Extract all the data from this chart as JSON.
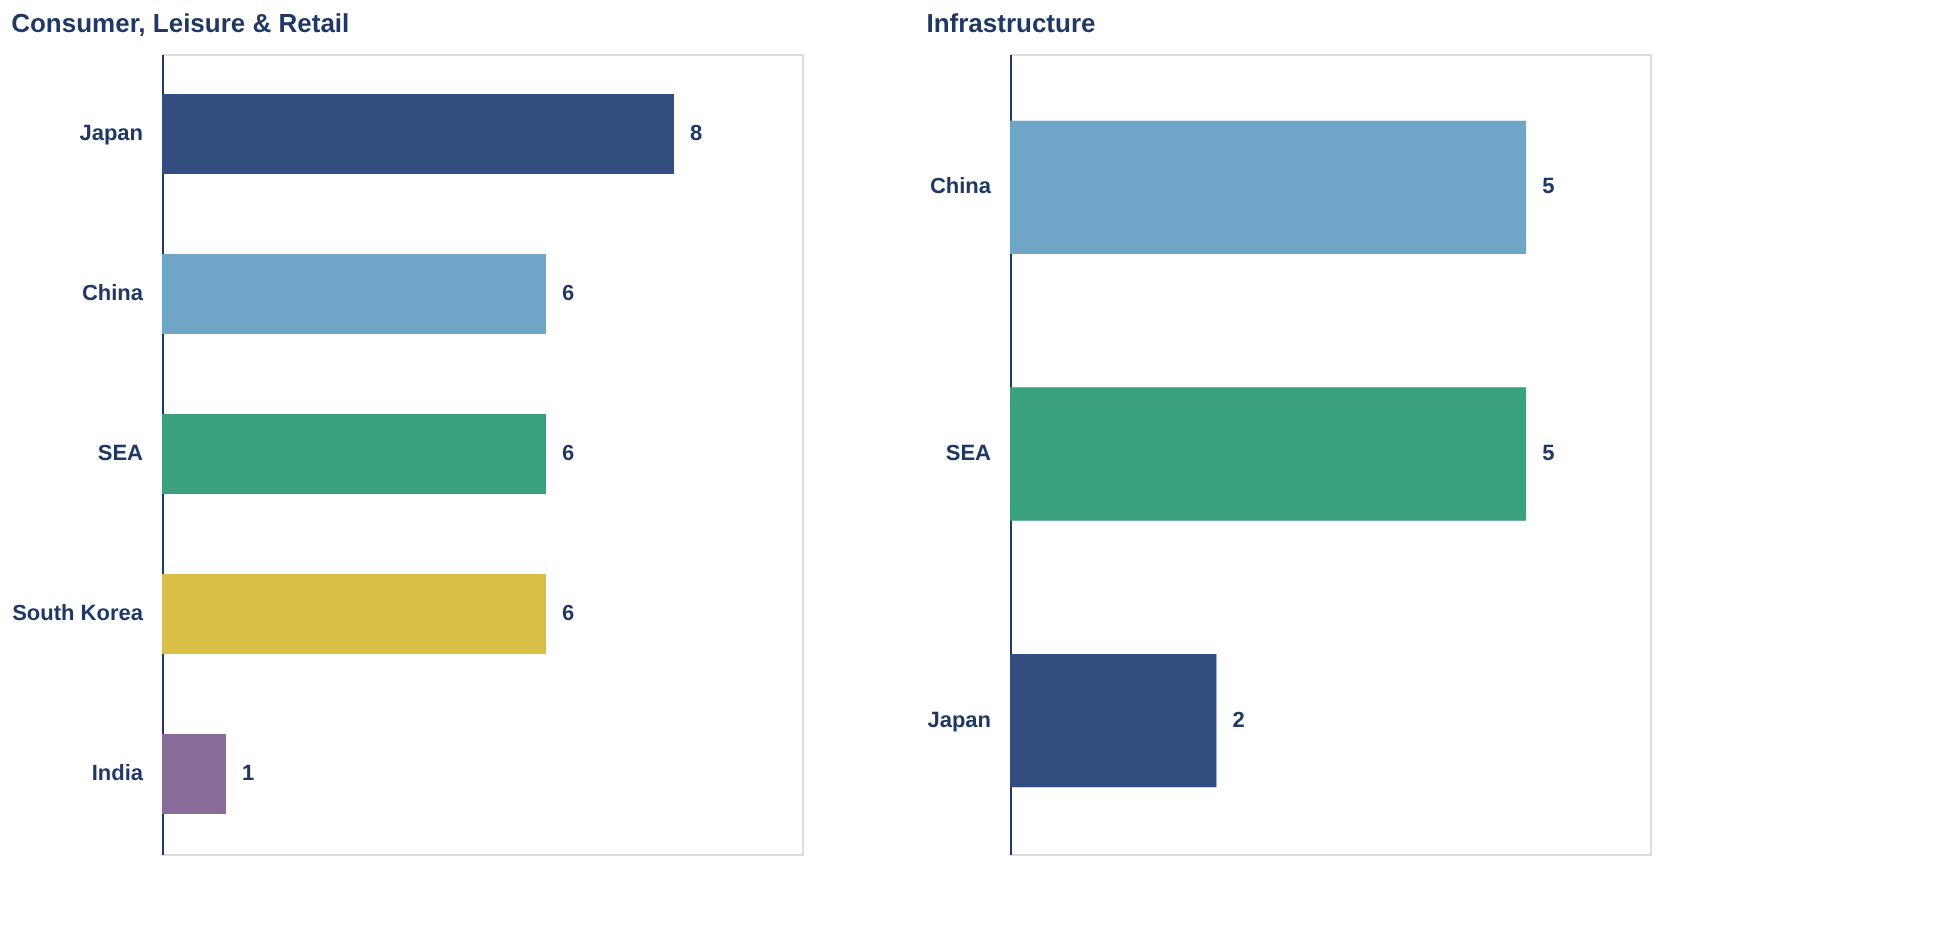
{
  "chart_data": [
    {
      "type": "bar",
      "orientation": "horizontal",
      "title": "Consumer, Leisure & Retail",
      "categories": [
        "Japan",
        "China",
        "SEA",
        "South Korea",
        "India"
      ],
      "values": [
        8,
        6,
        6,
        6,
        1
      ],
      "colors": [
        "#324d80",
        "#6fa6c8",
        "#3aa17e",
        "#d9be48",
        "#8a6c9a"
      ],
      "xlim": [
        0,
        10
      ],
      "data_labels": true,
      "tick_labels": "y",
      "legend": false
    },
    {
      "type": "bar",
      "orientation": "horizontal",
      "title": "Infrastructure",
      "categories": [
        "China",
        "SEA",
        "Japan"
      ],
      "values": [
        5,
        5,
        2
      ],
      "colors": [
        "#6fa6c8",
        "#3aa17e",
        "#324d80"
      ],
      "xlim": [
        0,
        6.2
      ],
      "data_labels": true,
      "tick_labels": "y",
      "legend": false
    }
  ]
}
